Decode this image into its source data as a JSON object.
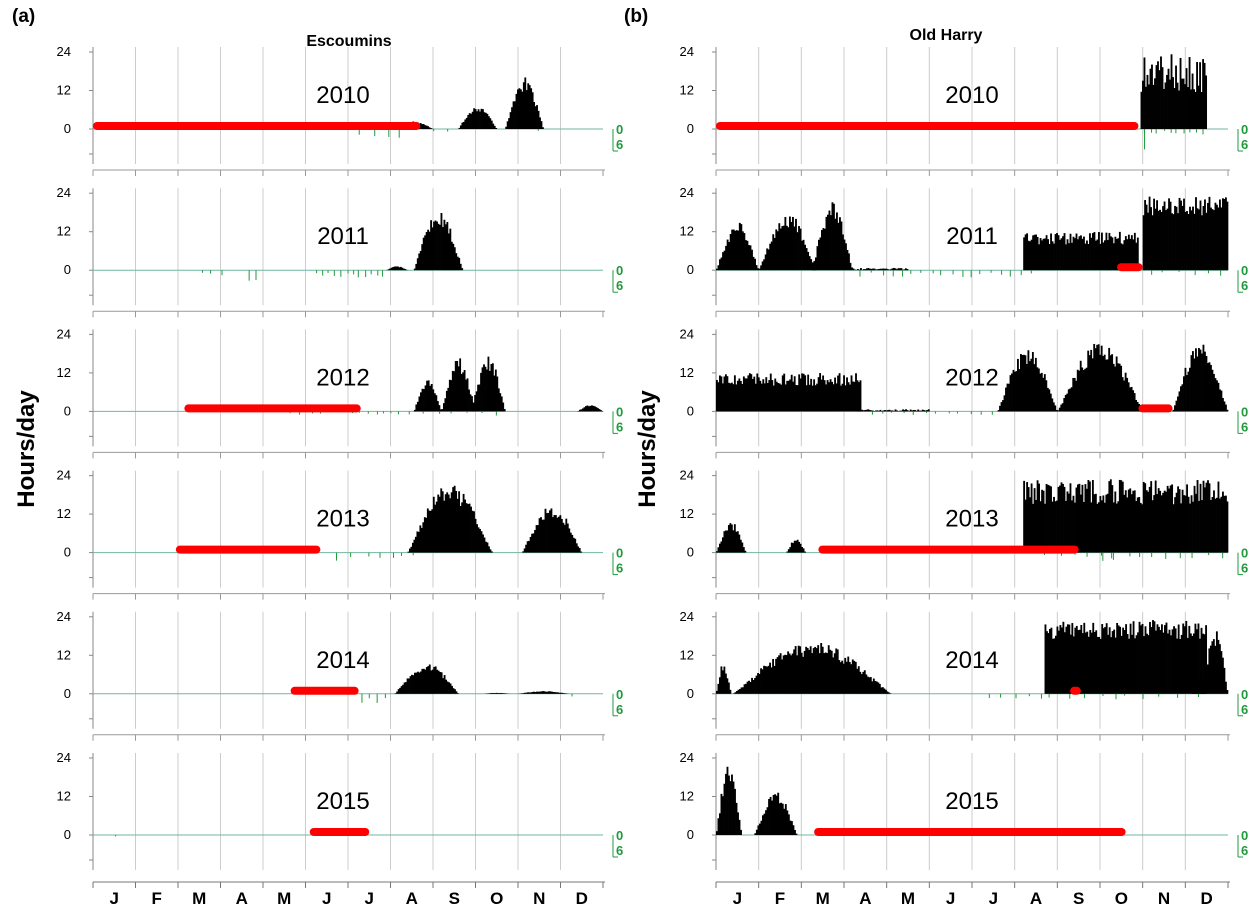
{
  "figure": {
    "panel_a_label": "(a)",
    "panel_b_label": "(b)",
    "site_a": "Escoumins",
    "site_b": "Old Harry",
    "ylabel": "Hours/day",
    "months": [
      "J",
      "F",
      "M",
      "A",
      "M",
      "J",
      "J",
      "A",
      "S",
      "O",
      "N",
      "D"
    ],
    "y_ticks": [
      "24",
      "12",
      "0"
    ],
    "green_ticks": [
      "0",
      "6"
    ],
    "colors": {
      "bars": "#000000",
      "gap": "#ff0000",
      "green": "#1f9a3c",
      "grid": "#cccccc"
    }
  },
  "chart_data": [
    {
      "type": "bar",
      "site": "Escoumins",
      "ylabel": "Hours/day",
      "ylim": [
        0,
        24
      ],
      "x_unit": "month",
      "years": [
        {
          "year": "2010",
          "gaps": [
            [
              0.0,
              7.7
            ]
          ],
          "humps": [
            [
              7.1,
              8.0,
              2.2
            ],
            [
              8.6,
              9.5,
              7.0
            ],
            [
              9.7,
              10.6,
              15.0
            ]
          ],
          "spikes": [
            [
              6.1,
              7.4,
              4,
              3.5
            ],
            [
              7.9,
              8.5,
              2,
              1.0
            ],
            [
              10.4,
              10.6,
              1,
              1.0
            ]
          ]
        },
        {
          "year": "2011",
          "gaps": [],
          "humps": [
            [
              6.9,
              7.4,
              1.2
            ],
            [
              7.55,
              8.7,
              17.5
            ]
          ],
          "spikes": [
            [
              2.5,
              3.1,
              3,
              1.5
            ],
            [
              3.6,
              3.9,
              2,
              3.0
            ],
            [
              5.2,
              6.9,
              12,
              2.5
            ]
          ]
        },
        {
          "year": "2012",
          "gaps": [
            [
              2.15,
              6.3
            ]
          ],
          "humps": [
            [
              7.55,
              8.2,
              9.0
            ],
            [
              8.2,
              9.0,
              15.5
            ],
            [
              8.9,
              9.7,
              16.0
            ],
            [
              11.4,
              12.0,
              2.0
            ]
          ],
          "spikes": [
            [
              4.5,
              5.5,
              4,
              1.0
            ],
            [
              6.0,
              7.5,
              8,
              1.0
            ],
            [
              7.6,
              9.6,
              6,
              1.2
            ]
          ]
        },
        {
          "year": "2013",
          "gaps": [
            [
              1.95,
              5.35
            ]
          ],
          "humps": [
            [
              7.4,
              9.4,
              20.0
            ],
            [
              10.1,
              11.5,
              14.0
            ]
          ],
          "spikes": [
            [
              5.6,
              6.2,
              2,
              2.5
            ],
            [
              6.4,
              7.4,
              4,
              1.8
            ],
            [
              7.4,
              7.6,
              1,
              1.0
            ]
          ]
        },
        {
          "year": "2014",
          "gaps": [
            [
              4.65,
              6.25
            ]
          ],
          "humps": [
            [
              7.1,
              8.6,
              9.0
            ],
            [
              9.2,
              9.8,
              0.3
            ],
            [
              10.0,
              11.2,
              0.8
            ]
          ],
          "spikes": [
            [
              6.2,
              7.0,
              4,
              2.5
            ],
            [
              11.2,
              11.4,
              1,
              1.0
            ]
          ]
        },
        {
          "year": "2015",
          "gaps": [
            [
              5.1,
              6.5
            ]
          ],
          "humps": [],
          "spikes": [
            [
              0.5,
              0.6,
              1,
              1.0
            ]
          ]
        }
      ]
    },
    {
      "type": "bar",
      "site": "Old Harry",
      "ylabel": "Hours/day",
      "ylim": [
        0,
        24
      ],
      "x_unit": "month",
      "years": [
        {
          "year": "2010",
          "gaps": [
            [
              0.0,
              9.9
            ]
          ],
          "blocks": [
            [
              9.95,
              11.5,
              17.5,
              6.0
            ]
          ],
          "spikes": [
            [
              9.95,
              11.5,
              10,
              1.5
            ],
            [
              10.0,
              10.1,
              1,
              6.0
            ]
          ]
        },
        {
          "year": "2011",
          "gaps": [
            [
              9.4,
              10.0
            ]
          ],
          "humps": [
            [
              0.0,
              1.0,
              14.0
            ],
            [
              1.0,
              2.35,
              17.0
            ],
            [
              2.25,
              3.2,
              20.0
            ]
          ],
          "blocks": [
            [
              3.2,
              4.5,
              0.4,
              0.3
            ],
            [
              7.2,
              9.9,
              10.0,
              2.0
            ],
            [
              10.0,
              12.0,
              20.0,
              3.0
            ]
          ],
          "spikes": [
            [
              3.3,
              7.5,
              18,
              2.0
            ],
            [
              10.0,
              12.0,
              6,
              1.5
            ]
          ]
        },
        {
          "year": "2012",
          "gaps": [
            [
              9.9,
              10.7
            ]
          ],
          "humps": [
            [
              6.6,
              8.0,
              18.5
            ],
            [
              8.0,
              10.0,
              20.0
            ],
            [
              10.7,
              12.0,
              20.0
            ]
          ],
          "blocks": [
            [
              3.3,
              5.0,
              0.4,
              0.3
            ],
            [
              0.0,
              3.4,
              10.0,
              2.0
            ]
          ],
          "spikes": [
            [
              3.5,
              6.6,
              12,
              1.0
            ]
          ]
        },
        {
          "year": "2013",
          "gaps": [
            [
              2.4,
              8.5
            ]
          ],
          "humps": [
            [
              0.0,
              0.7,
              9.0
            ],
            [
              1.65,
              2.1,
              4.0
            ]
          ],
          "blocks": [
            [
              7.2,
              12.0,
              19.0,
              4.0
            ]
          ],
          "spikes": [
            [
              7.6,
              12.0,
              14,
              1.8
            ],
            [
              9.0,
              9.4,
              2,
              2.5
            ]
          ]
        },
        {
          "year": "2014",
          "gaps": [
            [
              8.3,
              8.55
            ]
          ],
          "humps": [
            [
              0.0,
              0.35,
              9.0
            ],
            [
              0.4,
              4.1,
              15.0
            ],
            [
              11.4,
              12.0,
              19.0
            ]
          ],
          "blocks": [
            [
              10.5,
              11.5,
              20.0,
              3.0
            ],
            [
              7.7,
              10.5,
              20.0,
              3.0
            ],
            [
              11.15,
              11.45,
              5.0,
              2.0
            ]
          ],
          "spikes": [
            [
              6.3,
              8.0,
              6,
              1.5
            ],
            [
              9.3,
              9.5,
              1,
              2.0
            ],
            [
              8.0,
              11.5,
              8,
              1.5
            ]
          ]
        },
        {
          "year": "2015",
          "gaps": [
            [
              2.3,
              9.6
            ]
          ],
          "humps": [
            [
              0.0,
              0.6,
              21.0
            ],
            [
              0.9,
              1.9,
              12.5
            ]
          ],
          "spikes": []
        }
      ]
    }
  ]
}
